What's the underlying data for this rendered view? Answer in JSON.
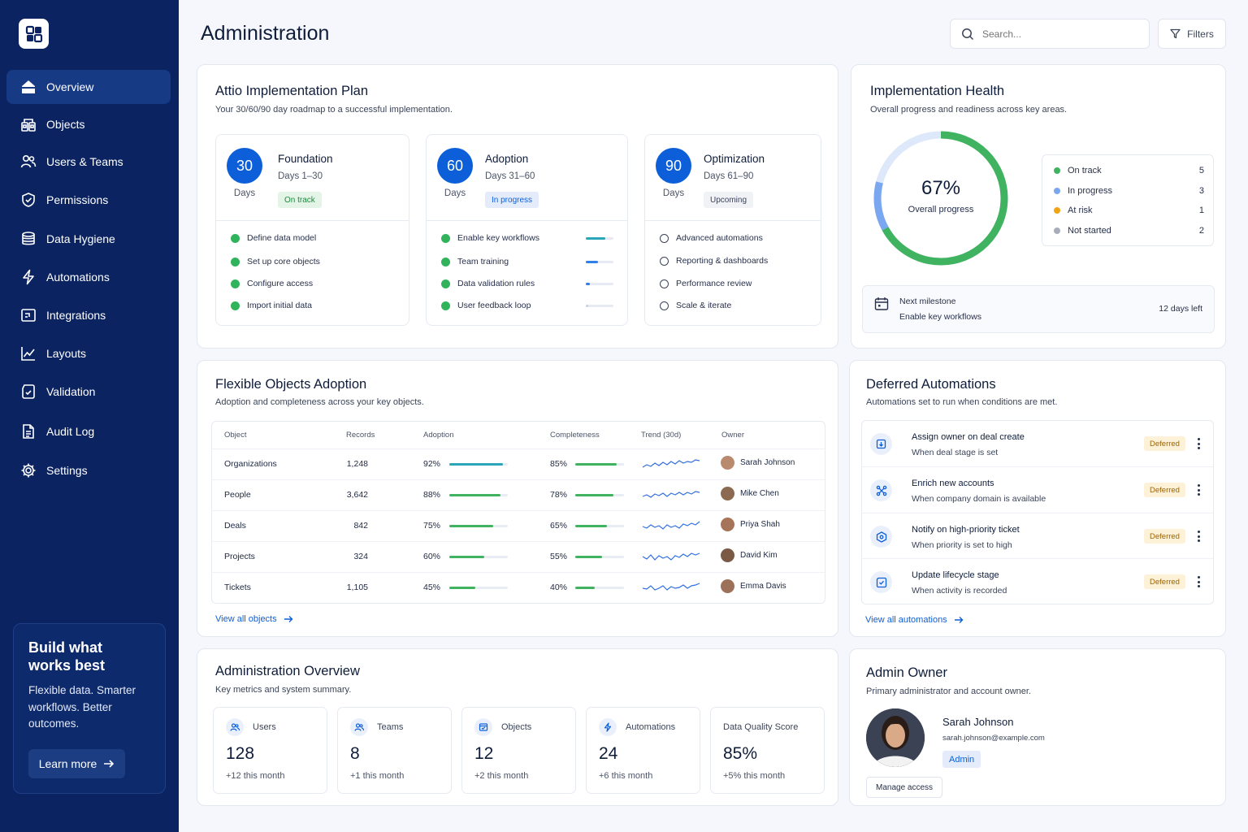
{
  "page": {
    "title": "Administration"
  },
  "search": {
    "placeholder": "Search..."
  },
  "filters": {
    "label": "Filters"
  },
  "sidebar": {
    "items": [
      {
        "label": "Overview",
        "icon": "home-icon"
      },
      {
        "label": "Objects",
        "icon": "objects-icon"
      },
      {
        "label": "Users & Teams",
        "icon": "users-icon"
      },
      {
        "label": "Permissions",
        "icon": "shield-icon"
      },
      {
        "label": "Data Hygiene",
        "icon": "database-icon"
      },
      {
        "label": "Automations",
        "icon": "bolt-icon"
      },
      {
        "label": "Integrations",
        "icon": "integrations-icon"
      },
      {
        "label": "Layouts",
        "icon": "chart-line-icon"
      },
      {
        "label": "Validation",
        "icon": "validation-icon"
      },
      {
        "label": "Audit Log",
        "icon": "document-icon"
      },
      {
        "label": "Settings",
        "icon": "gear-icon"
      }
    ],
    "promo": {
      "title": "Build what works best",
      "text": "Flexible data. Smarter workflows. Better outcomes.",
      "button": "Learn more"
    }
  },
  "plan": {
    "title": "Attio Implementation Plan",
    "subtitle": "Your 30/60/90 day roadmap to a successful implementation.",
    "phases": [
      {
        "num": "30",
        "days_label": "Days",
        "name": "Foundation",
        "range": "Days 1–30",
        "status": "On track",
        "tasks": [
          {
            "label": "Define data model",
            "done": true
          },
          {
            "label": "Set up core objects",
            "done": true
          },
          {
            "label": "Configure access",
            "done": true
          },
          {
            "label": "Import initial data",
            "done": true
          }
        ]
      },
      {
        "num": "60",
        "days_label": "Days",
        "name": "Adoption",
        "range": "Days 31–60",
        "status": "In progress",
        "tasks": [
          {
            "label": "Enable key workflows",
            "done": true,
            "progress": 0.7
          },
          {
            "label": "Team training",
            "done": true,
            "progress": 0.45
          },
          {
            "label": "Data validation rules",
            "done": true,
            "progress": 0.15
          },
          {
            "label": "User feedback loop",
            "done": true,
            "progress": 0.05
          }
        ]
      },
      {
        "num": "90",
        "days_label": "Days",
        "name": "Optimization",
        "range": "Days 61–90",
        "status": "Upcoming",
        "tasks": [
          {
            "label": "Advanced automations",
            "done": false
          },
          {
            "label": "Reporting & dashboards",
            "done": false
          },
          {
            "label": "Performance review",
            "done": false
          },
          {
            "label": "Scale & iterate",
            "done": false
          }
        ]
      }
    ]
  },
  "health": {
    "title": "Implementation Health",
    "subtitle": "Overall progress and readiness across key areas.",
    "percent": "67%",
    "percent_value": 0.67,
    "percent_label": "Overall progress",
    "legend": [
      {
        "label": "On track",
        "count": "5",
        "color": "#3fb35f"
      },
      {
        "label": "In progress",
        "count": "3",
        "color": "#7aa7f0"
      },
      {
        "label": "At risk",
        "count": "1",
        "color": "#f1a516"
      },
      {
        "label": "Not started",
        "count": "2",
        "color": "#a7adb9"
      }
    ],
    "milestone": {
      "label": "Next milestone",
      "value": "Enable key workflows",
      "remaining": "12 days left"
    }
  },
  "objects": {
    "title": "Flexible Objects Adoption",
    "subtitle": "Adoption and completeness across your key objects.",
    "columns": [
      "Object",
      "Records",
      "Adoption",
      "Completeness",
      "Trend (30d)",
      "Owner"
    ],
    "rows": [
      {
        "name": "Organizations",
        "records": "1,248",
        "adoption": "92%",
        "adoption_v": 0.92,
        "complete": "85%",
        "complete_v": 0.85,
        "owner": "Sarah Johnson"
      },
      {
        "name": "People",
        "records": "3,642",
        "adoption": "88%",
        "adoption_v": 0.88,
        "complete": "78%",
        "complete_v": 0.78,
        "owner": "Mike Chen"
      },
      {
        "name": "Deals",
        "records": "842",
        "adoption": "75%",
        "adoption_v": 0.75,
        "complete": "65%",
        "complete_v": 0.65,
        "owner": "Priya Shah"
      },
      {
        "name": "Projects",
        "records": "324",
        "adoption": "60%",
        "adoption_v": 0.6,
        "complete": "55%",
        "complete_v": 0.55,
        "owner": "David Kim"
      },
      {
        "name": "Tickets",
        "records": "1,105",
        "adoption": "45%",
        "adoption_v": 0.45,
        "complete": "40%",
        "complete_v": 0.4,
        "owner": "Emma Davis"
      }
    ],
    "link": "View all objects"
  },
  "automations": {
    "title": "Deferred Automations",
    "subtitle": "Automations set to run when conditions are met.",
    "items": [
      {
        "title": "Assign owner on deal create",
        "sub": "When deal stage is set",
        "badge": "Deferred",
        "icon": "assign-icon"
      },
      {
        "title": "Enrich new accounts",
        "sub": "When company domain is available",
        "badge": "Deferred",
        "icon": "enrich-icon"
      },
      {
        "title": "Notify on high-priority ticket",
        "sub": "When priority is set to high",
        "badge": "Deferred",
        "icon": "notify-icon"
      },
      {
        "title": "Update lifecycle stage",
        "sub": "When activity is recorded",
        "badge": "Deferred",
        "icon": "update-icon"
      }
    ],
    "link": "View all automations"
  },
  "overview": {
    "title": "Administration Overview",
    "subtitle": "Key metrics and system summary.",
    "metrics": [
      {
        "label": "Users",
        "value": "128",
        "delta": "+12 this month",
        "icon": "users-icon"
      },
      {
        "label": "Teams",
        "value": "8",
        "delta": "+1 this month",
        "icon": "teams-icon"
      },
      {
        "label": "Objects",
        "value": "12",
        "delta": "+2 this month",
        "icon": "objects-icon"
      },
      {
        "label": "Automations",
        "value": "24",
        "delta": "+6 this month",
        "icon": "bolt-icon"
      },
      {
        "label": "Data Quality Score",
        "value": "85%",
        "delta": "+5% this month",
        "icon": ""
      }
    ]
  },
  "owner": {
    "title": "Admin Owner",
    "subtitle": "Primary administrator and account owner.",
    "name": "Sarah Johnson",
    "email": "sarah.johnson@example.com",
    "role": "Admin",
    "button": "Manage access"
  },
  "colors": {
    "navy": "#0b2461",
    "accent": "#0c5fd9",
    "green": "#3fb35f",
    "teal": "#2aa6b8"
  }
}
